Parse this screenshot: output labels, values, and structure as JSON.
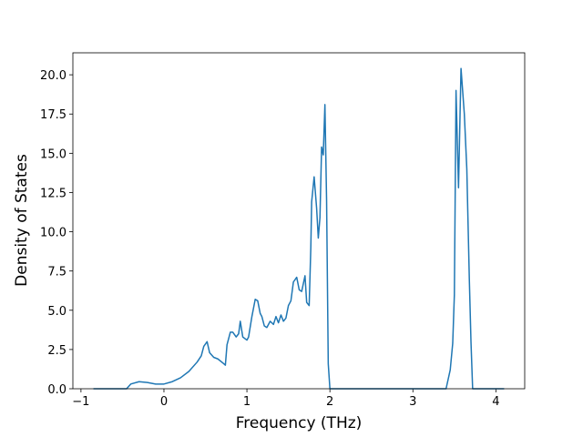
{
  "chart_data": {
    "type": "line",
    "xlabel": "Frequency (THz)",
    "ylabel": "Density of States",
    "x": [
      -0.85,
      -0.45,
      -0.4,
      -0.3,
      -0.2,
      -0.1,
      0,
      0.1,
      0.2,
      0.3,
      0.4,
      0.45,
      0.48,
      0.52,
      0.55,
      0.6,
      0.65,
      0.72,
      0.74,
      0.76,
      0.8,
      0.83,
      0.87,
      0.9,
      0.92,
      0.95,
      1.0,
      1.02,
      1.06,
      1.1,
      1.13,
      1.16,
      1.18,
      1.21,
      1.24,
      1.28,
      1.32,
      1.35,
      1.38,
      1.41,
      1.44,
      1.47,
      1.5,
      1.53,
      1.56,
      1.6,
      1.63,
      1.66,
      1.7,
      1.72,
      1.75,
      1.77,
      1.78,
      1.81,
      1.84,
      1.86,
      1.88,
      1.9,
      1.92,
      1.94,
      1.96,
      1.98,
      2.0,
      3.4,
      3.45,
      3.48,
      3.5,
      3.52,
      3.55,
      3.58,
      3.62,
      3.65,
      3.68,
      3.7,
      3.72,
      4.1
    ],
    "series": [
      {
        "color": "#1f77b4",
        "values": [
          0,
          0,
          0.3,
          0.45,
          0.4,
          0.3,
          0.3,
          0.45,
          0.7,
          1.1,
          1.7,
          2.1,
          2.7,
          3.0,
          2.3,
          2.0,
          1.9,
          1.6,
          1.5,
          2.8,
          3.6,
          3.6,
          3.3,
          3.5,
          4.3,
          3.3,
          3.1,
          3.3,
          4.6,
          5.7,
          5.6,
          4.8,
          4.6,
          4.0,
          3.9,
          4.3,
          4.1,
          4.6,
          4.2,
          4.7,
          4.3,
          4.5,
          5.3,
          5.6,
          6.8,
          7.1,
          6.3,
          6.2,
          7.2,
          5.5,
          5.3,
          9,
          11.9,
          13.5,
          11.5,
          9.6,
          10.9,
          15.4,
          14.9,
          18.1,
          12,
          1.6,
          0,
          0,
          1.2,
          2.9,
          6,
          19,
          12.8,
          20.4,
          17.5,
          14,
          7,
          3,
          0,
          0
        ]
      }
    ],
    "xlim": [
      -1.0975,
      4.3475
    ],
    "ylim": [
      0,
      21.4
    ],
    "xticks": [
      {
        "value": -1,
        "label": "−1"
      },
      0,
      1,
      2,
      3,
      4
    ],
    "yticks": [
      {
        "value": 0,
        "label": "0.0"
      },
      {
        "value": 2.5,
        "label": "2.5"
      },
      {
        "value": 5,
        "label": "5.0"
      },
      {
        "value": 7.5,
        "label": "7.5"
      },
      {
        "value": 10,
        "label": "10.0"
      },
      {
        "value": 12.5,
        "label": "12.5"
      },
      {
        "value": 15,
        "label": "15.0"
      },
      {
        "value": 17.5,
        "label": "17.5"
      },
      {
        "value": 20,
        "label": "20.0"
      }
    ]
  }
}
